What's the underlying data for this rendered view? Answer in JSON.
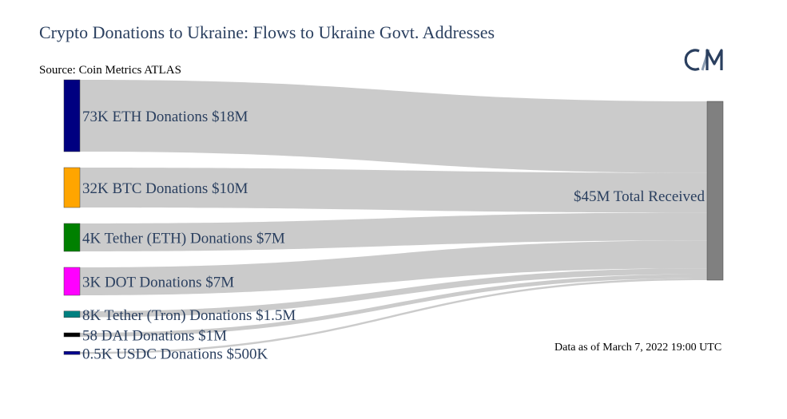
{
  "header": {
    "title": "Crypto Donations to Ukraine: Flows to Ukraine Govt. Addresses",
    "source": "Source: Coin Metrics ATLAS",
    "as_of": "Data as of March 7, 2022 19:00 UTC",
    "logo_text": "CM"
  },
  "chart_data": {
    "type": "sankey",
    "nodes": [
      {
        "label": "73K ETH Donations $18M",
        "value": 18,
        "color": "#000080"
      },
      {
        "label": "32K BTC Donations $10M",
        "value": 10,
        "color": "#FFA500"
      },
      {
        "label": "4K Tether (ETH) Donations $7M",
        "value": 7,
        "color": "#008000"
      },
      {
        "label": "3K DOT Donations $7M",
        "value": 7,
        "color": "#FF00FF"
      },
      {
        "label": "8K Tether (Tron) Donations $1.5M",
        "value": 1.5,
        "color": "#008080"
      },
      {
        "label": "58 DAI Donations $1M",
        "value": 1,
        "color": "#000000"
      },
      {
        "label": "0.5K USDC Donations $500K",
        "value": 0.5,
        "color": "#00008B"
      },
      {
        "label": "$45M Total Received",
        "value": 45,
        "color": "#808080"
      }
    ],
    "links": [
      {
        "source": 0,
        "target": 7,
        "value": 18
      },
      {
        "source": 1,
        "target": 7,
        "value": 10
      },
      {
        "source": 2,
        "target": 7,
        "value": 7
      },
      {
        "source": 3,
        "target": 7,
        "value": 7
      },
      {
        "source": 4,
        "target": 7,
        "value": 1.5
      },
      {
        "source": 5,
        "target": 7,
        "value": 1
      },
      {
        "source": 6,
        "target": 7,
        "value": 0.5
      }
    ],
    "link_color": "#C8C8C8"
  }
}
